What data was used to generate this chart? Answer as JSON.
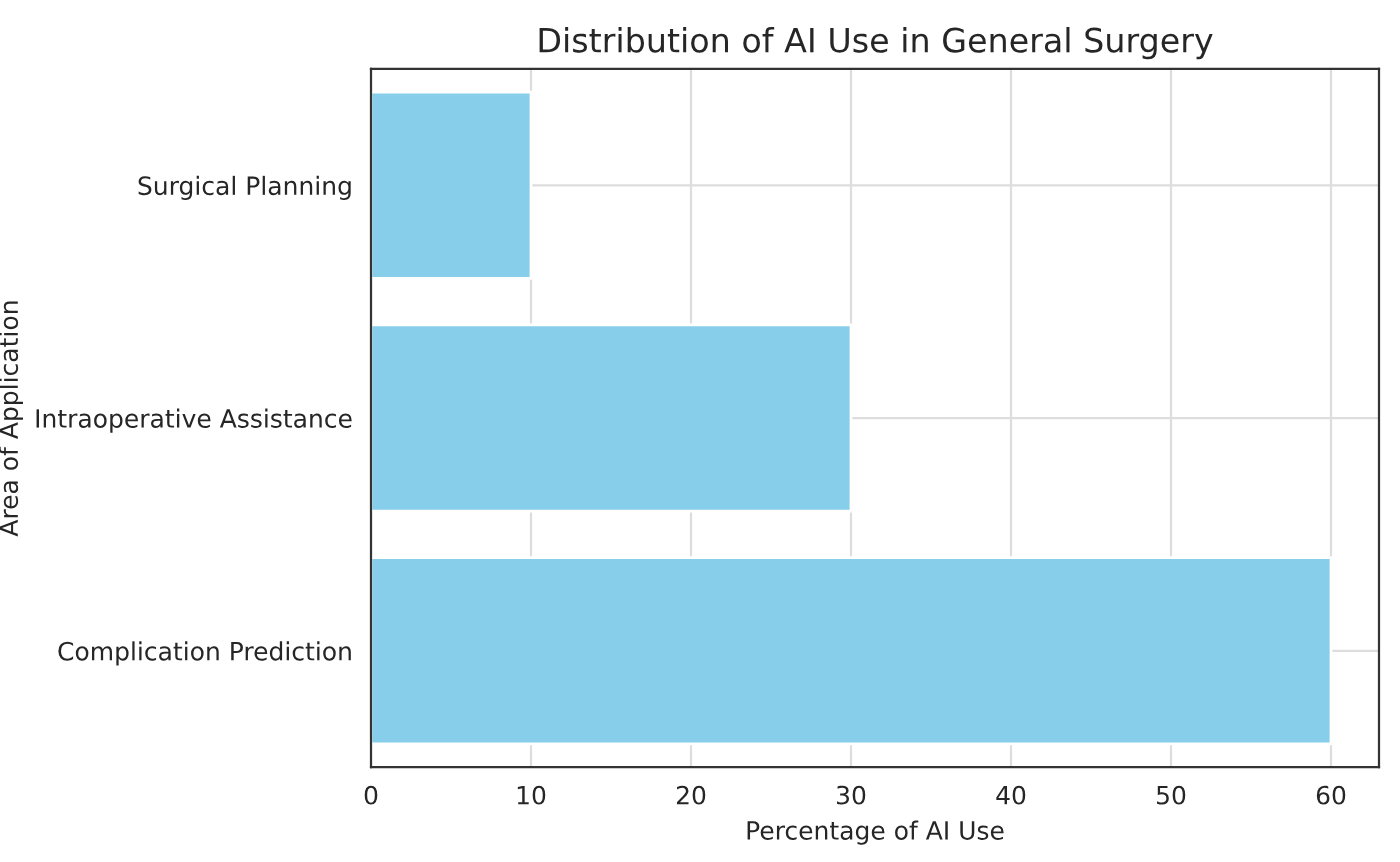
{
  "chart_data": {
    "type": "bar",
    "orientation": "horizontal",
    "title": "Distribution of AI Use in General Surgery",
    "xlabel": "Percentage of AI Use",
    "ylabel": "Area of Application",
    "categories": [
      "Surgical Planning",
      "Intraoperative Assistance",
      "Complication Prediction"
    ],
    "values": [
      10,
      30,
      60
    ],
    "color": "#87ceeb",
    "xlim": [
      0,
      63
    ],
    "xticks": [
      0,
      10,
      20,
      30,
      40,
      50,
      60
    ],
    "grid": true
  }
}
